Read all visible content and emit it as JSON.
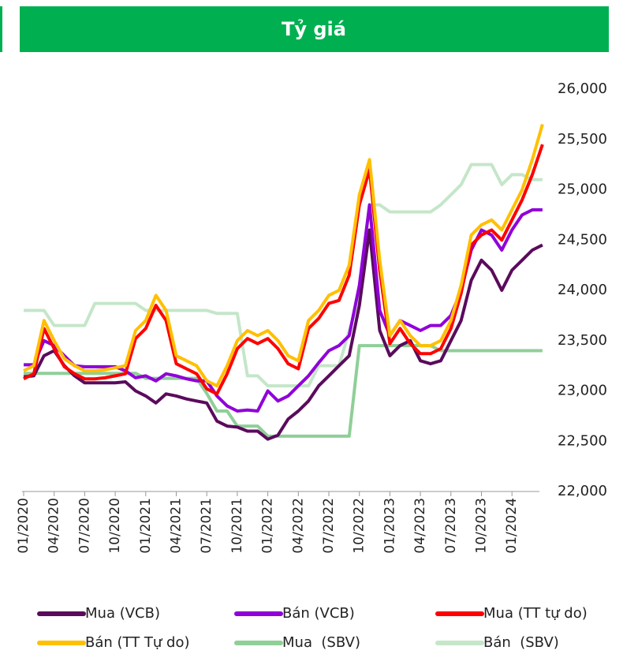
{
  "chart_data": {
    "type": "line",
    "title": "Tỷ giá",
    "x": [
      "01/2020",
      null,
      null,
      "04/2020",
      null,
      null,
      "07/2020",
      null,
      null,
      "10/2020",
      null,
      null,
      "01/2021",
      null,
      null,
      "04/2021",
      null,
      null,
      "07/2021",
      null,
      null,
      "10/2021",
      null,
      null,
      "01/2022",
      null,
      null,
      "04/2022",
      null,
      null,
      "07/2022",
      null,
      null,
      "10/2022",
      null,
      null,
      "01/2023",
      null,
      null,
      "04/2023",
      null,
      null,
      "07/2023",
      null,
      null,
      "10/2023",
      null,
      null,
      "01/2024",
      null,
      null,
      null
    ],
    "series": [
      {
        "name": "Mua (VCB)",
        "color": "#5a0b5c",
        "values": [
          23140,
          23150,
          23350,
          23400,
          23250,
          23150,
          23080,
          23080,
          23080,
          23080,
          23090,
          23000,
          22950,
          22880,
          22970,
          22950,
          22920,
          22900,
          22880,
          22700,
          22650,
          22640,
          22600,
          22600,
          22520,
          22560,
          22720,
          22800,
          22900,
          23050,
          23150,
          23250,
          23350,
          23850,
          24600,
          23600,
          23350,
          23450,
          23500,
          23300,
          23270,
          23300,
          23500,
          23700,
          24100,
          24300,
          24200,
          24000,
          24200,
          24300,
          24400,
          24450
        ]
      },
      {
        "name": "Bán (VCB)",
        "color": "#9000d8",
        "values": [
          23260,
          23260,
          23500,
          23450,
          23350,
          23250,
          23240,
          23240,
          23240,
          23240,
          23200,
          23130,
          23150,
          23100,
          23170,
          23150,
          23120,
          23100,
          23100,
          22950,
          22850,
          22800,
          22810,
          22800,
          23000,
          22900,
          22950,
          23050,
          23150,
          23280,
          23400,
          23450,
          23550,
          24050,
          24850,
          23800,
          23550,
          23700,
          23650,
          23600,
          23650,
          23650,
          23750,
          24000,
          24400,
          24600,
          24550,
          24400,
          24600,
          24750,
          24800,
          24800
        ]
      },
      {
        "name": "Mua (TT tự do)",
        "color": "#ff0000",
        "values": [
          23120,
          23170,
          23620,
          23420,
          23240,
          23170,
          23120,
          23120,
          23130,
          23150,
          23170,
          23520,
          23620,
          23850,
          23700,
          23270,
          23220,
          23170,
          23020,
          22970,
          23170,
          23420,
          23520,
          23470,
          23520,
          23420,
          23270,
          23220,
          23620,
          23720,
          23870,
          23900,
          24150,
          24850,
          25200,
          24200,
          23470,
          23620,
          23470,
          23370,
          23370,
          23420,
          23620,
          23970,
          24450,
          24550,
          24600,
          24500,
          24700,
          24900,
          25150,
          25450
        ]
      },
      {
        "name": "Bán (TT Tự do)",
        "color": "#ffc000",
        "values": [
          23200,
          23250,
          23700,
          23500,
          23320,
          23250,
          23200,
          23200,
          23210,
          23230,
          23250,
          23600,
          23700,
          23950,
          23800,
          23350,
          23300,
          23250,
          23100,
          23050,
          23250,
          23500,
          23600,
          23550,
          23600,
          23500,
          23350,
          23300,
          23700,
          23800,
          23950,
          24000,
          24250,
          24950,
          25300,
          24300,
          23550,
          23700,
          23550,
          23450,
          23450,
          23500,
          23700,
          24050,
          24550,
          24650,
          24700,
          24600,
          24800,
          25000,
          25300,
          25650
        ]
      },
      {
        "name": "Mua  (SBV)",
        "color": "#8fcf98",
        "values": [
          23175,
          23175,
          23175,
          23175,
          23175,
          23175,
          23175,
          23175,
          23175,
          23175,
          23175,
          23175,
          23125,
          23125,
          23125,
          23125,
          23125,
          23125,
          22975,
          22800,
          22800,
          22650,
          22650,
          22650,
          22550,
          22550,
          22550,
          22550,
          22550,
          22550,
          22550,
          22550,
          22550,
          23450,
          23450,
          23450,
          23450,
          23450,
          23450,
          23450,
          23450,
          23400,
          23400,
          23400,
          23400,
          23400,
          23400,
          23400,
          23400,
          23400,
          23400,
          23400
        ]
      },
      {
        "name": "Bán  (SBV)",
        "color": "#c5e6c9",
        "values": [
          23800,
          23800,
          23800,
          23650,
          23650,
          23650,
          23650,
          23870,
          23870,
          23870,
          23870,
          23870,
          23800,
          23800,
          23800,
          23800,
          23800,
          23800,
          23800,
          23770,
          23770,
          23770,
          23150,
          23150,
          23050,
          23050,
          23050,
          23050,
          23050,
          23250,
          23250,
          23250,
          23600,
          23920,
          24850,
          24850,
          24780,
          24780,
          24780,
          24780,
          24780,
          24850,
          24950,
          25050,
          25250,
          25250,
          25250,
          25050,
          25150,
          25150,
          25100,
          25100
        ]
      }
    ],
    "ylim": [
      22000,
      26000
    ],
    "yticks": [
      {
        "value": 22000,
        "label": "22,000"
      },
      {
        "value": 22500,
        "label": "22,500"
      },
      {
        "value": 23000,
        "label": "23,000"
      },
      {
        "value": 23500,
        "label": "23,500"
      },
      {
        "value": 24000,
        "label": "24,000"
      },
      {
        "value": 24500,
        "label": "24,500"
      },
      {
        "value": 25000,
        "label": "25,000"
      },
      {
        "value": 25500,
        "label": "25,500"
      },
      {
        "value": 26000,
        "label": "26,000"
      }
    ],
    "grid": false
  }
}
